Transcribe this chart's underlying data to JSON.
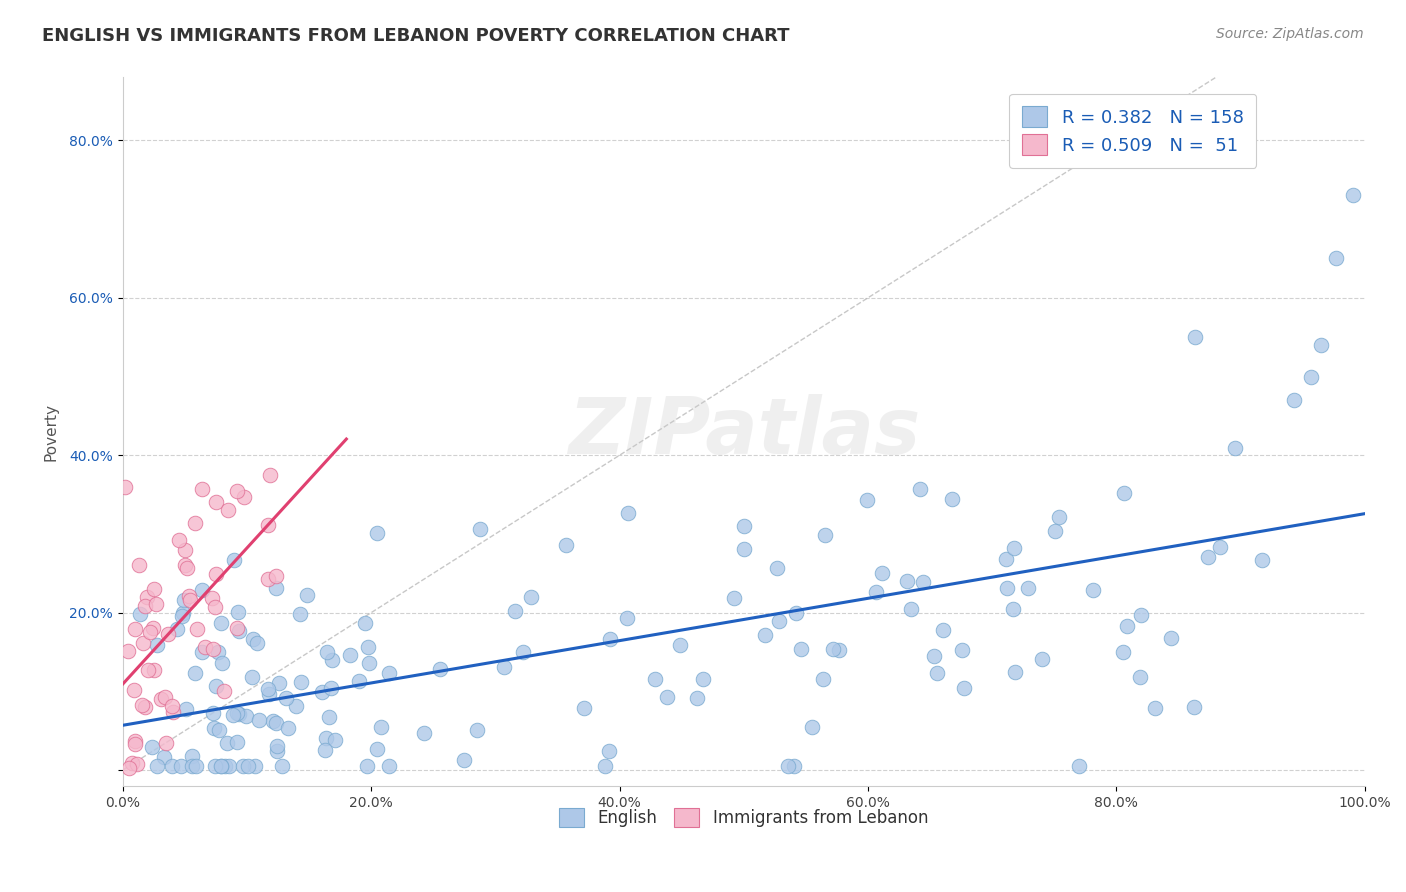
{
  "title": "ENGLISH VS IMMIGRANTS FROM LEBANON POVERTY CORRELATION CHART",
  "source_text": "Source: ZipAtlas.com",
  "ylabel": "Poverty",
  "xlim": [
    0,
    1
  ],
  "ylim": [
    -0.02,
    0.88
  ],
  "xticks": [
    0.0,
    0.2,
    0.4,
    0.6,
    0.8,
    1.0
  ],
  "xtick_labels": [
    "0.0%",
    "20.0%",
    "40.0%",
    "60.0%",
    "80.0%",
    "100.0%"
  ],
  "yticks": [
    0.0,
    0.2,
    0.4,
    0.6,
    0.8
  ],
  "ytick_labels": [
    "",
    "20.0%",
    "40.0%",
    "60.0%",
    "80.0%"
  ],
  "english_color": "#aec8e8",
  "english_edge_color": "#7aaad0",
  "lebanon_color": "#f5b8cc",
  "lebanon_edge_color": "#e07095",
  "english_R": 0.382,
  "english_N": 158,
  "lebanon_R": 0.509,
  "lebanon_N": 51,
  "legend_R_color": "#1a5cb5",
  "background_color": "#ffffff",
  "grid_color": "#cccccc",
  "title_color": "#333333",
  "title_fontsize": 13,
  "axis_label_fontsize": 11,
  "tick_fontsize": 10,
  "source_fontsize": 10,
  "english_seed": 42,
  "lebanon_seed": 123,
  "ref_line_color": "#b0b0b0",
  "blue_line_color": "#2060c0",
  "pink_line_color": "#e04070",
  "marker_size": 110
}
